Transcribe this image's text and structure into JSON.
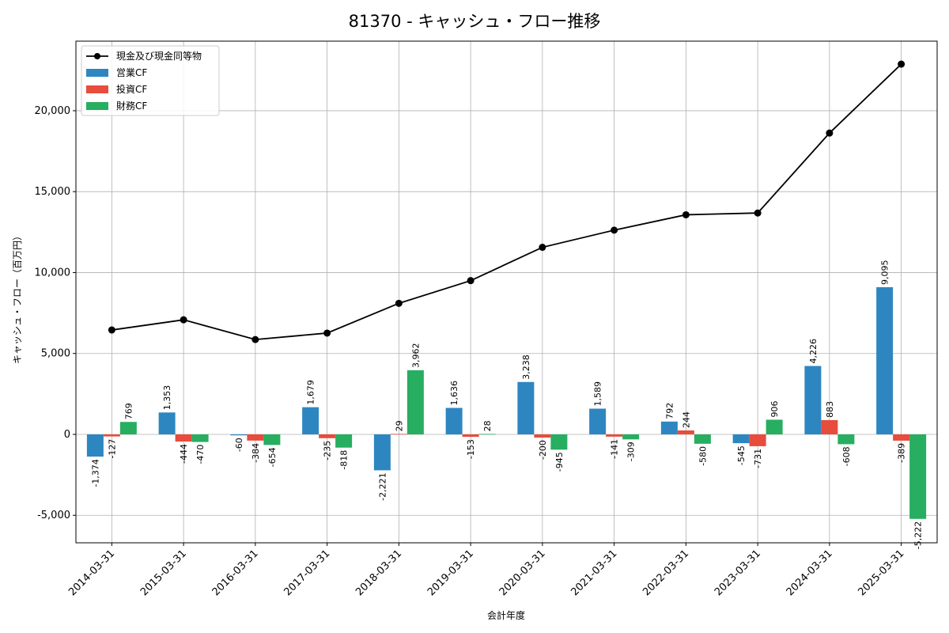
{
  "chart_data": {
    "type": "bar",
    "title": "81370 - キャッシュ・フロー推移",
    "xlabel": "会計年度",
    "ylabel": "キャッシュ・フロー（百万円）",
    "ylim": [
      -6700,
      24300
    ],
    "yticks": [
      -5000,
      0,
      5000,
      10000,
      15000,
      20000
    ],
    "ytick_labels": [
      "-5,000",
      "0",
      "5,000",
      "10,000",
      "15,000",
      "20,000"
    ],
    "grid": true,
    "legend_position": "top-left",
    "categories": [
      "2014-03-31",
      "2015-03-31",
      "2016-03-31",
      "2017-03-31",
      "2018-03-31",
      "2019-03-31",
      "2020-03-31",
      "2021-03-31",
      "2022-03-31",
      "2023-03-31",
      "2024-03-31",
      "2025-03-31"
    ],
    "series": [
      {
        "name": "営業CF",
        "type": "bar",
        "color": "#2e86c1",
        "values": [
          -1374,
          1353,
          -60,
          1679,
          -2221,
          1636,
          3238,
          1589,
          792,
          -545,
          4226,
          9095
        ],
        "labels": [
          "-1,374",
          "1,353",
          "-60",
          "1,679",
          "-2,221",
          "1,636",
          "3,238",
          "1,589",
          "792",
          "-545",
          "4,226",
          "9,095"
        ]
      },
      {
        "name": "投資CF",
        "type": "bar",
        "color": "#e74c3c",
        "values": [
          -127,
          -444,
          -384,
          -235,
          29,
          -153,
          -200,
          -141,
          244,
          -731,
          883,
          -389
        ],
        "labels": [
          "-127",
          "-444",
          "-384",
          "-235",
          "29",
          "-153",
          "-200",
          "-141",
          "244",
          "-731",
          "883",
          "-389"
        ]
      },
      {
        "name": "財務CF",
        "type": "bar",
        "color": "#27ae60",
        "values": [
          769,
          -470,
          -654,
          -818,
          3962,
          28,
          -945,
          -309,
          -580,
          906,
          -608,
          -5222
        ],
        "labels": [
          "769",
          "-470",
          "-654",
          "-818",
          "3,962",
          "28",
          "-945",
          "-309",
          "-580",
          "906",
          "-608",
          "-5,222"
        ]
      },
      {
        "name": "現金及び現金同等物",
        "type": "line",
        "color": "#000000",
        "values": [
          6450,
          7080,
          5860,
          6260,
          8100,
          9500,
          11560,
          12620,
          13570,
          13680,
          18620,
          22880
        ]
      }
    ]
  }
}
